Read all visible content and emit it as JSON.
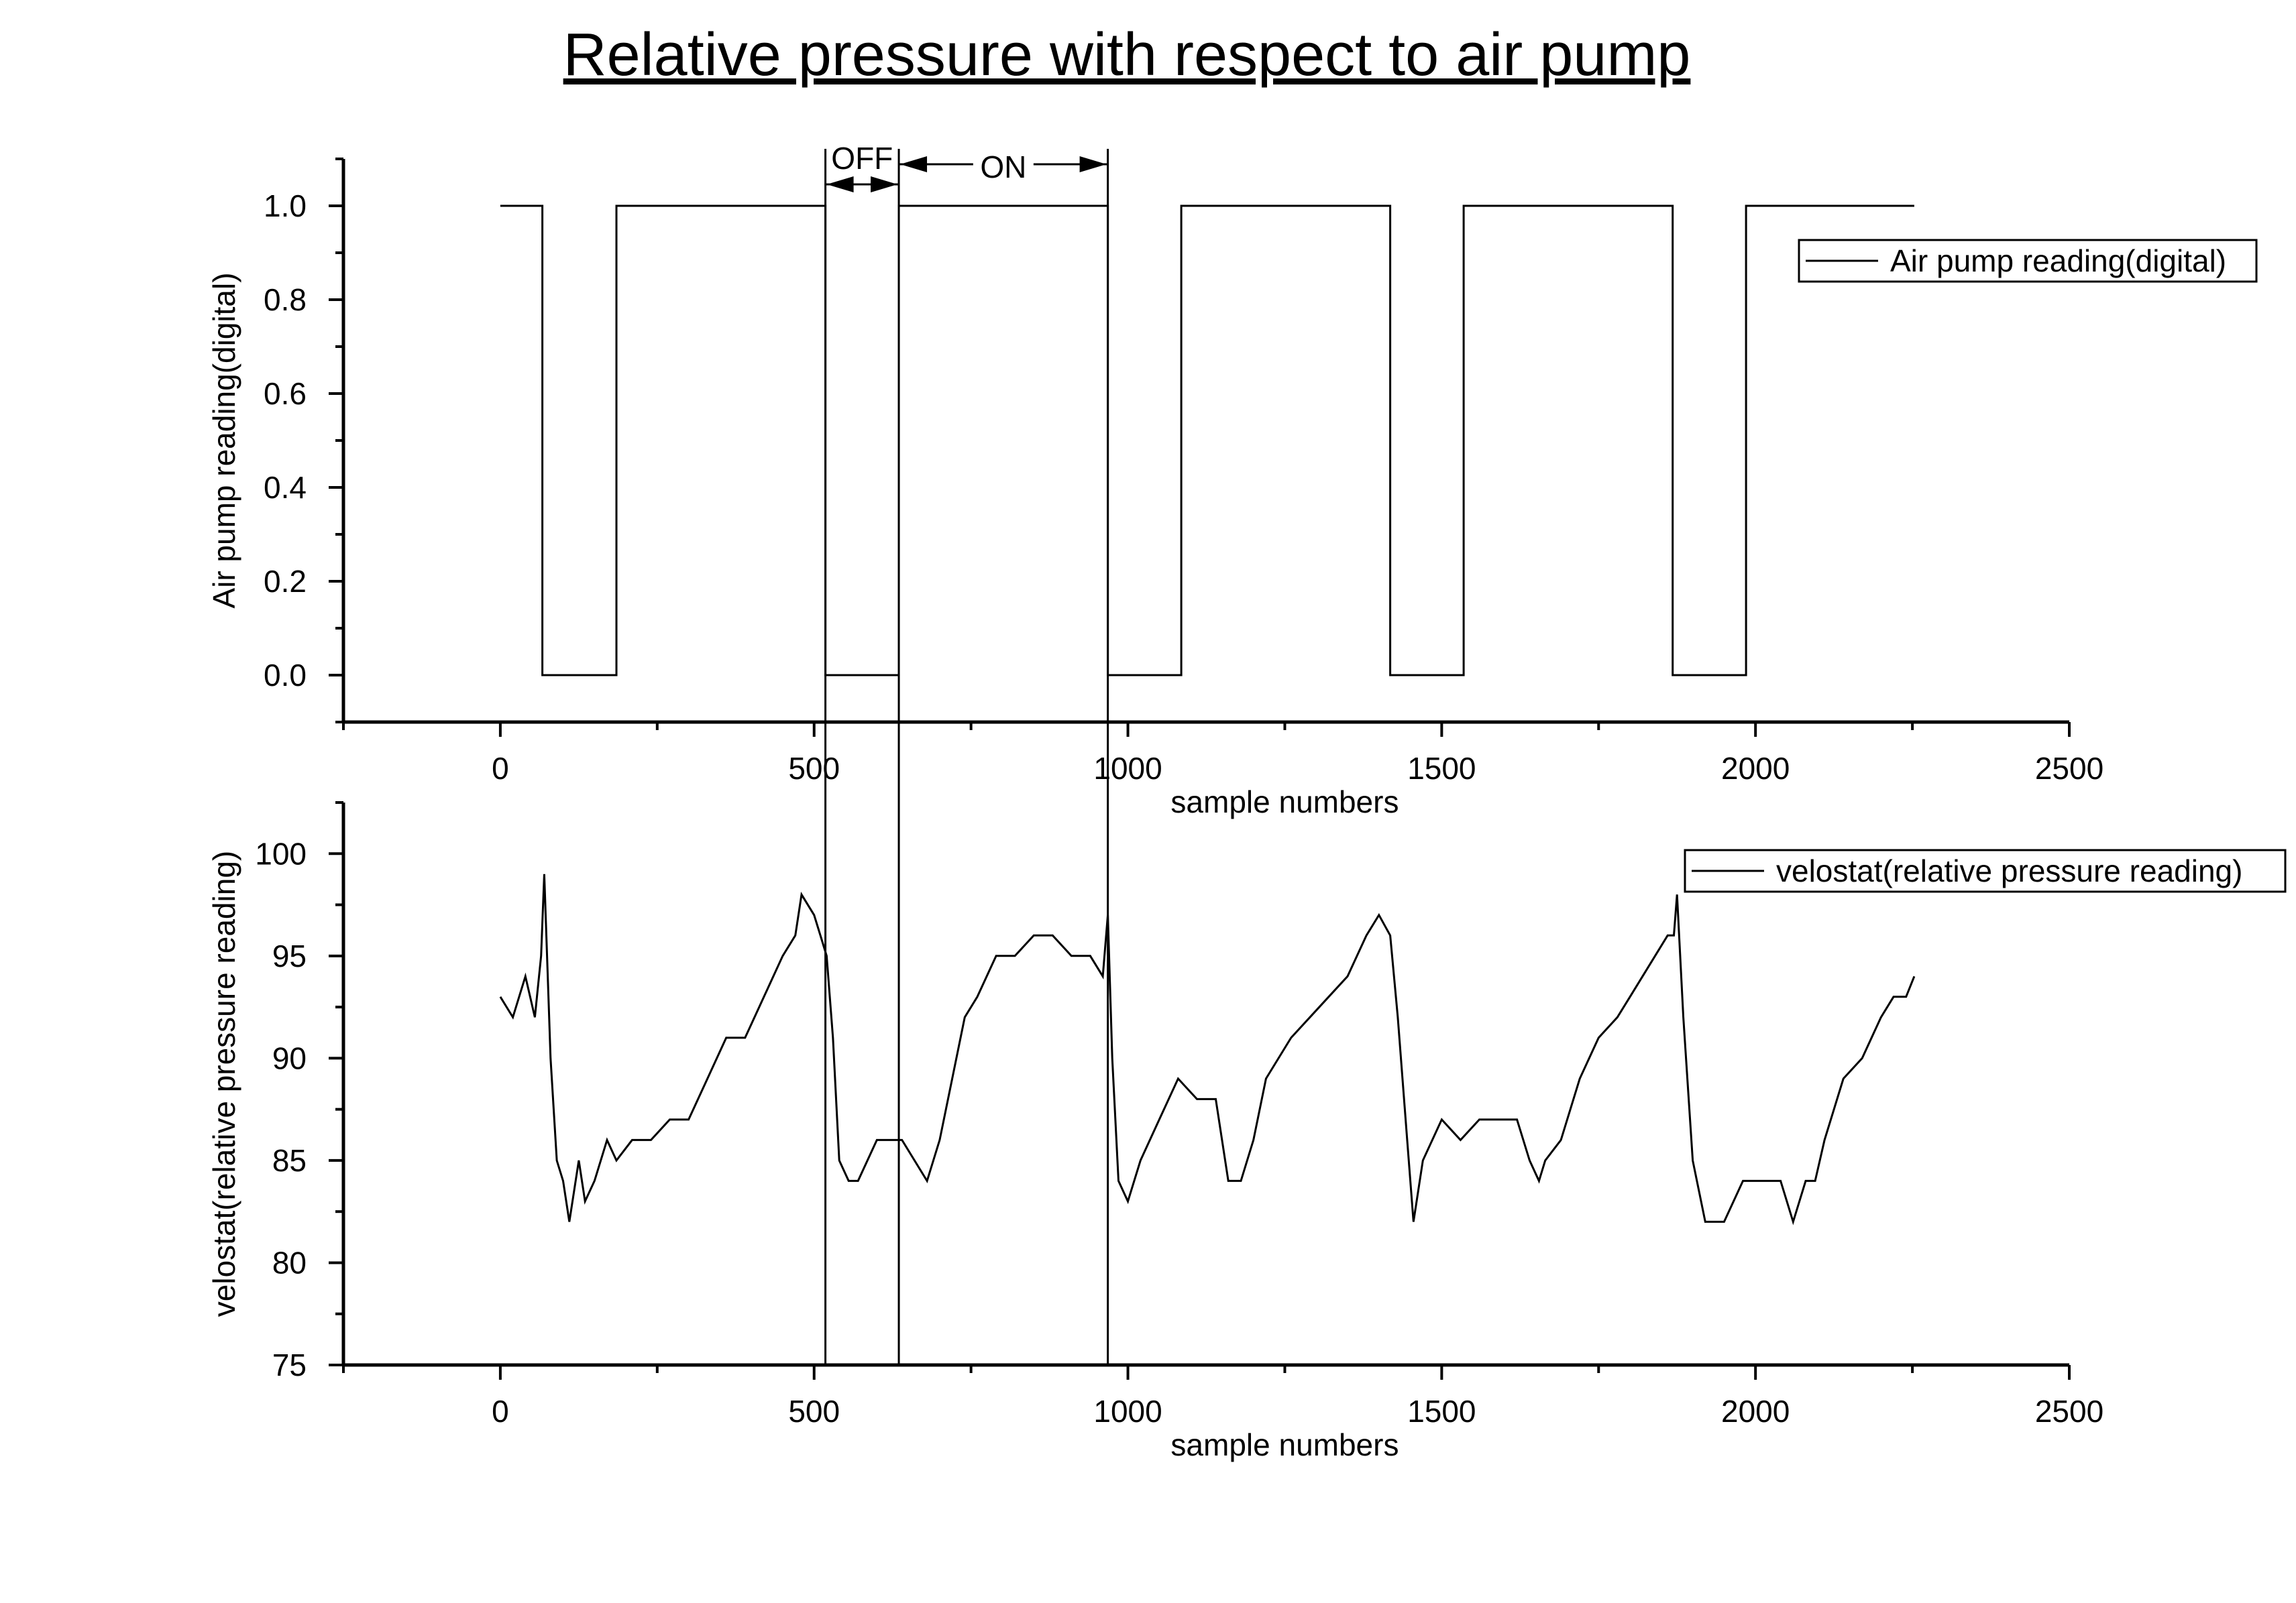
{
  "title": "Relative pressure with respect to air pump",
  "chart_data": [
    {
      "type": "line",
      "ylabel": "Air pump reading(digital)",
      "xlabel": "sample numbers",
      "xlim": [
        -250,
        2500
      ],
      "ylim": [
        -0.1,
        1.1
      ],
      "xticks": [
        "0",
        "500",
        "1000",
        "1500",
        "2000",
        "2500"
      ],
      "yticks": [
        "0.0",
        "0.2",
        "0.4",
        "0.6",
        "0.8",
        "1.0"
      ],
      "legend": "right",
      "series": [
        {
          "name": "Air pump reading(digital)",
          "x": [
            0,
            67,
            67,
            185,
            185,
            518,
            518,
            635,
            635,
            968,
            968,
            1085,
            1085,
            1418,
            1418,
            1535,
            1535,
            1868,
            1868,
            1985,
            1985,
            2253
          ],
          "y": [
            1,
            1,
            0,
            0,
            1,
            1,
            0,
            0,
            1,
            1,
            0,
            0,
            1,
            1,
            0,
            0,
            1,
            1,
            0,
            0,
            1,
            1
          ]
        }
      ],
      "annotations": [
        {
          "text": "OFF",
          "x_from": 518,
          "x_to": 635
        },
        {
          "text": "ON",
          "x_from": 635,
          "x_to": 968
        }
      ]
    },
    {
      "type": "line",
      "ylabel": "velostat(relative pressure reading)",
      "xlabel": "sample numbers",
      "xlim": [
        -250,
        2500
      ],
      "ylim": [
        75,
        102.5
      ],
      "xticks": [
        "0",
        "500",
        "1000",
        "1500",
        "2000",
        "2500"
      ],
      "yticks": [
        "75",
        "80",
        "85",
        "90",
        "95",
        "100"
      ],
      "legend": "top-right",
      "series": [
        {
          "name": "velostat(relative pressure reading)",
          "x": [
            0,
            20,
            40,
            55,
            65,
            70,
            80,
            90,
            100,
            110,
            125,
            135,
            150,
            170,
            185,
            210,
            240,
            270,
            300,
            330,
            360,
            390,
            420,
            450,
            470,
            480,
            500,
            510,
            520,
            530,
            540,
            555,
            570,
            600,
            620,
            640,
            660,
            680,
            700,
            720,
            740,
            760,
            790,
            820,
            850,
            880,
            910,
            940,
            960,
            968,
            975,
            985,
            1000,
            1020,
            1050,
            1080,
            1110,
            1140,
            1160,
            1180,
            1200,
            1220,
            1240,
            1260,
            1290,
            1320,
            1350,
            1380,
            1400,
            1418,
            1430,
            1445,
            1455,
            1470,
            1500,
            1530,
            1560,
            1590,
            1620,
            1640,
            1655,
            1665,
            1690,
            1720,
            1750,
            1780,
            1800,
            1820,
            1840,
            1860,
            1870,
            1875,
            1885,
            1900,
            1920,
            1950,
            1980,
            2010,
            2040,
            2060,
            2080,
            2095,
            2110,
            2140,
            2170,
            2200,
            2220,
            2240,
            2253
          ],
          "y": [
            93,
            92,
            94,
            92,
            95,
            99,
            90,
            85,
            84,
            82,
            85,
            83,
            84,
            86,
            85,
            86,
            86,
            87,
            87,
            89,
            91,
            91,
            93,
            95,
            96,
            98,
            97,
            96,
            95,
            91,
            85,
            84,
            84,
            86,
            86,
            86,
            85,
            84,
            86,
            89,
            92,
            93,
            95,
            95,
            96,
            96,
            95,
            95,
            94,
            97,
            90,
            84,
            83,
            85,
            87,
            89,
            88,
            88,
            84,
            84,
            86,
            89,
            90,
            91,
            92,
            93,
            94,
            96,
            97,
            96,
            92,
            86,
            82,
            85,
            87,
            86,
            87,
            87,
            87,
            85,
            84,
            85,
            86,
            89,
            91,
            92,
            93,
            94,
            95,
            96,
            96,
            98,
            92,
            85,
            82,
            82,
            84,
            84,
            84,
            82,
            84,
            84,
            86,
            89,
            90,
            92,
            93,
            93,
            94
          ]
        }
      ]
    }
  ]
}
